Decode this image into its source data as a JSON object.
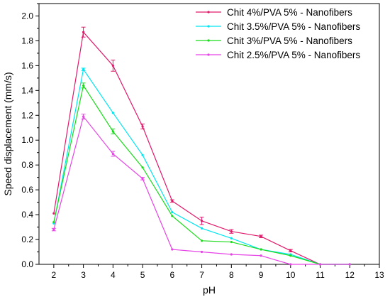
{
  "chart_data": {
    "type": "line",
    "title": "",
    "xlabel": "pH",
    "ylabel": "Speed displacement (mm/s)",
    "xlim": [
      1.5,
      13
    ],
    "ylim": [
      0.0,
      2.1
    ],
    "xticks": [
      "2",
      "3",
      "4",
      "5",
      "6",
      "7",
      "8",
      "9",
      "10",
      "11",
      "12",
      "13"
    ],
    "yticks": [
      "0.0",
      "0.2",
      "0.4",
      "0.6",
      "0.8",
      "1.0",
      "1.2",
      "1.4",
      "1.6",
      "1.8",
      "2.0"
    ],
    "grid": false,
    "legend_position": "top-right",
    "x": [
      2,
      3,
      4,
      5,
      6,
      7,
      8,
      9,
      10,
      11,
      12
    ],
    "series": [
      {
        "name": "Chit 4%/PVA 5% - Nanofibers",
        "color": "#e0196b",
        "values": [
          0.41,
          1.87,
          1.6,
          1.11,
          0.51,
          0.35,
          0.265,
          0.225,
          0.11,
          0.0,
          0.0
        ],
        "errors": [
          0.0,
          0.04,
          0.045,
          0.02,
          0.01,
          0.03,
          0.015,
          0.01,
          0.01,
          0.0,
          0.0
        ]
      },
      {
        "name": "Chit 3.5%/PVA 5% - Nanofibers",
        "color": "#00e5f0",
        "values": [
          0.33,
          1.57,
          1.22,
          0.88,
          0.42,
          0.29,
          0.21,
          0.12,
          0.08,
          0.0,
          0.0
        ],
        "errors": [
          0.0,
          0.01,
          0.0,
          0.0,
          0.0,
          0.0,
          0.0,
          0.0,
          0.0,
          0.0,
          0.0
        ]
      },
      {
        "name": "Chit 3%/PVA 5% - Nanofibers",
        "color": "#1adc1a",
        "values": [
          0.34,
          1.44,
          1.07,
          0.78,
          0.39,
          0.19,
          0.18,
          0.12,
          0.07,
          0.0,
          0.0
        ],
        "errors": [
          0.0,
          0.02,
          0.02,
          0.0,
          0.0,
          0.0,
          0.0,
          0.0,
          0.0,
          0.0,
          0.0
        ]
      },
      {
        "name": "Chit 2.5%/PVA 5% - Nanofibers",
        "color": "#e645e6",
        "values": [
          0.28,
          1.19,
          0.89,
          0.69,
          0.12,
          0.1,
          0.08,
          0.07,
          0.0,
          0.0,
          0.0
        ],
        "errors": [
          0.01,
          0.02,
          0.02,
          0.01,
          0.0,
          0.0,
          0.0,
          0.0,
          0.0,
          0.0,
          0.0
        ]
      }
    ]
  }
}
